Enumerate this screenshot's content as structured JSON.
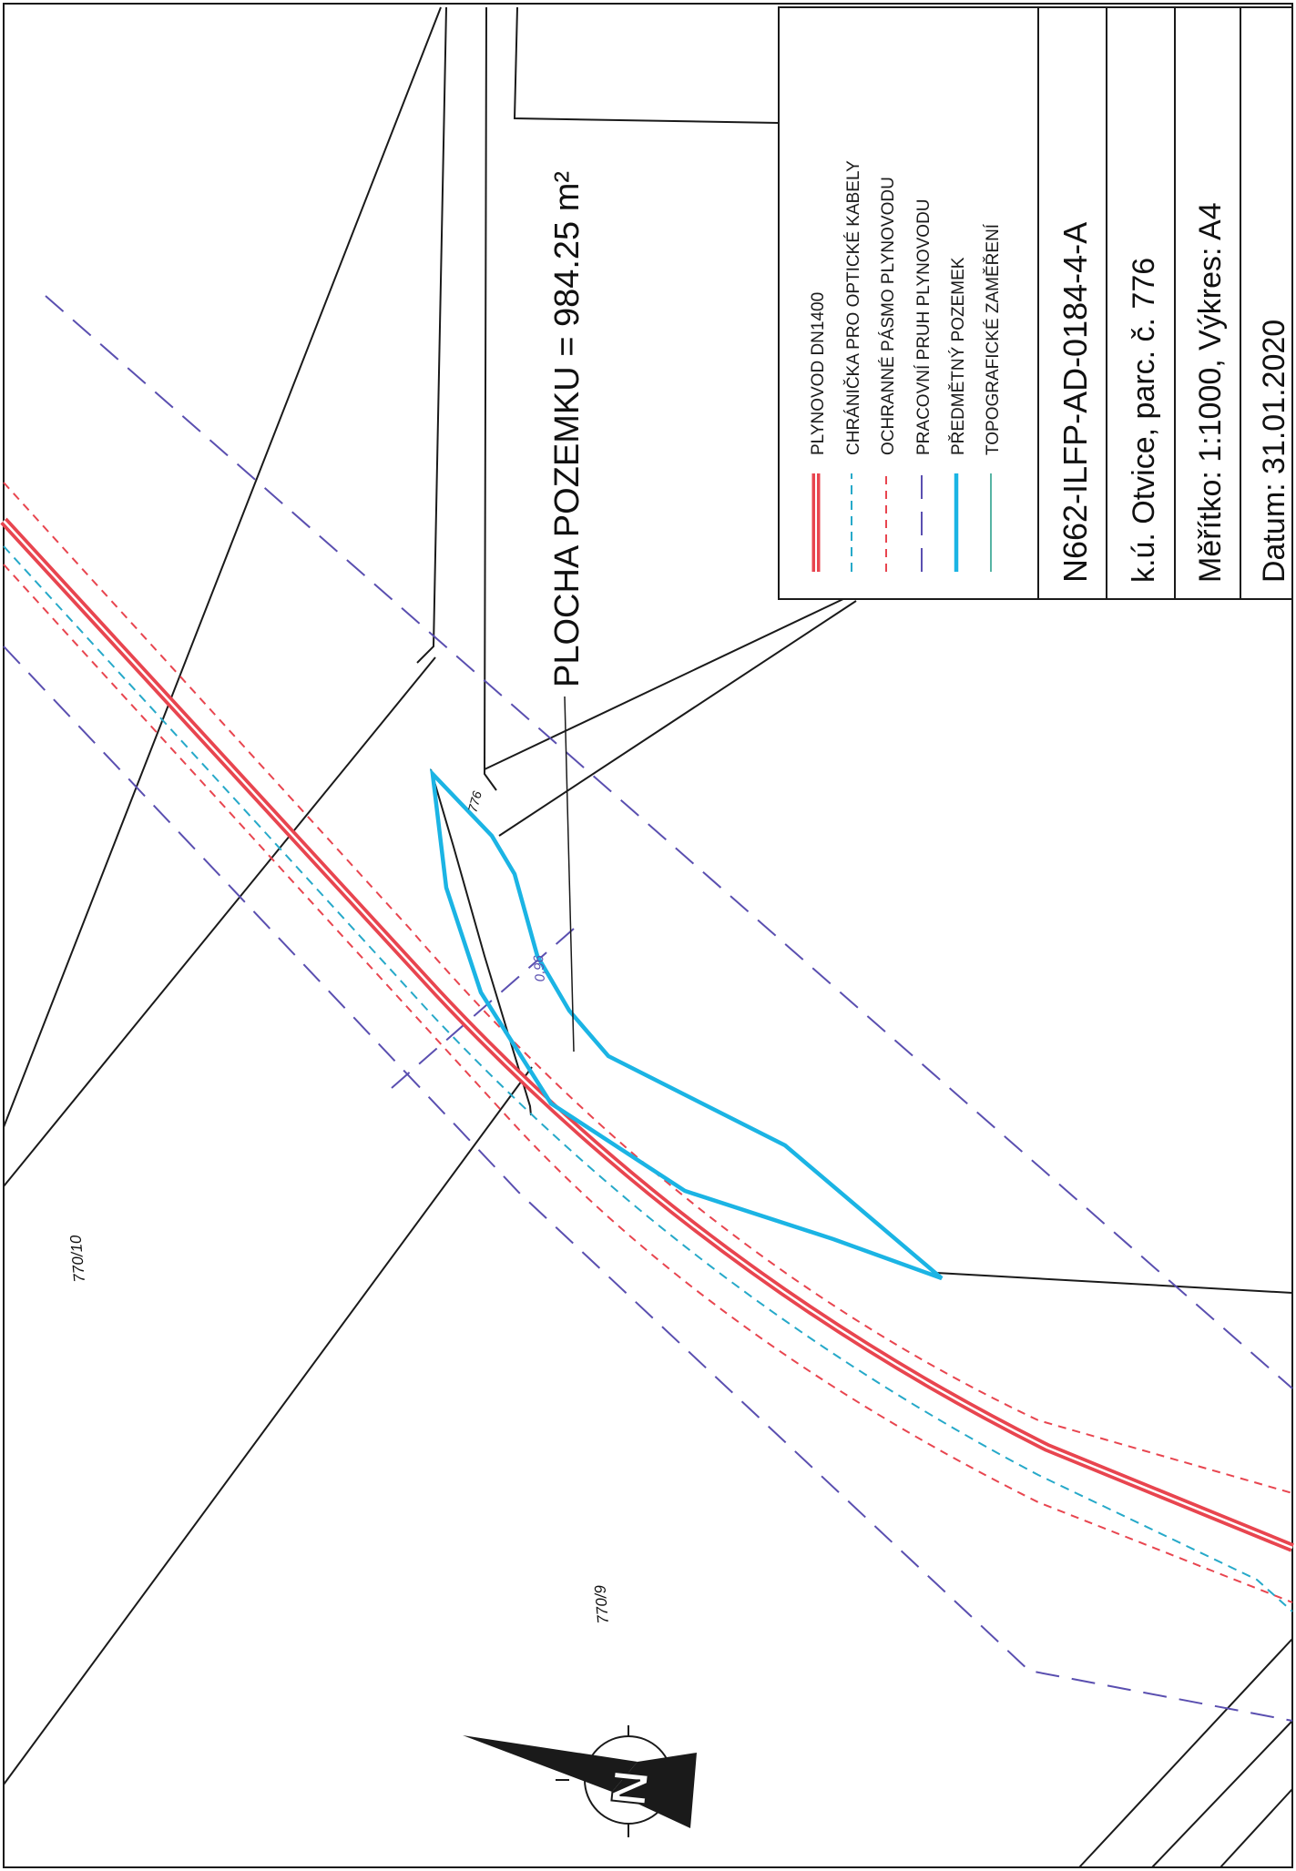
{
  "area_label": "PLOCHA POZEMKU = 984.25 m²",
  "parcels": {
    "p770_10": "770/10",
    "p770_9": "770/9",
    "p776": "776"
  },
  "dimension_label": "0,96",
  "north_arrow_letter": "N",
  "legend": {
    "items": [
      {
        "label": "PLYNOVOD DN1400",
        "symbol": "gas-pipeline-line",
        "color": "#e8454f"
      },
      {
        "label": "CHRÁNIČKA PRO OPTICKÉ KABELY",
        "symbol": "fiber-duct-line",
        "color": "#26a9c9"
      },
      {
        "label": "OCHRANNÉ PÁSMO PLYNOVODU",
        "symbol": "protection-zone-line",
        "color": "#e8454f"
      },
      {
        "label": "PRACOVNÍ PRUH PLYNOVODU",
        "symbol": "working-strip-line",
        "color": "#5a4fb0"
      },
      {
        "label": "PŘEDMĚTNÝ POZEMEK",
        "symbol": "subject-parcel-line",
        "color": "#1bb4e4"
      },
      {
        "label": "TOPOGRAFICKÉ ZAMĚŘENÍ",
        "symbol": "survey-line",
        "color": "#1f9a86"
      }
    ]
  },
  "title_block": {
    "drawing_no": "N662-ILFP-AD-0184-4-A",
    "cadastre": "k.ú. Otvice, parc. č. 776",
    "scale": "Měřítko: 1:1000, Výkres: A4",
    "date": "Datum: 31.01.2020"
  },
  "colors": {
    "pipeline": "#e8454f",
    "fiber": "#26a9c9",
    "working_strip": "#5a4fb0",
    "parcel": "#1bb4e4"
  }
}
